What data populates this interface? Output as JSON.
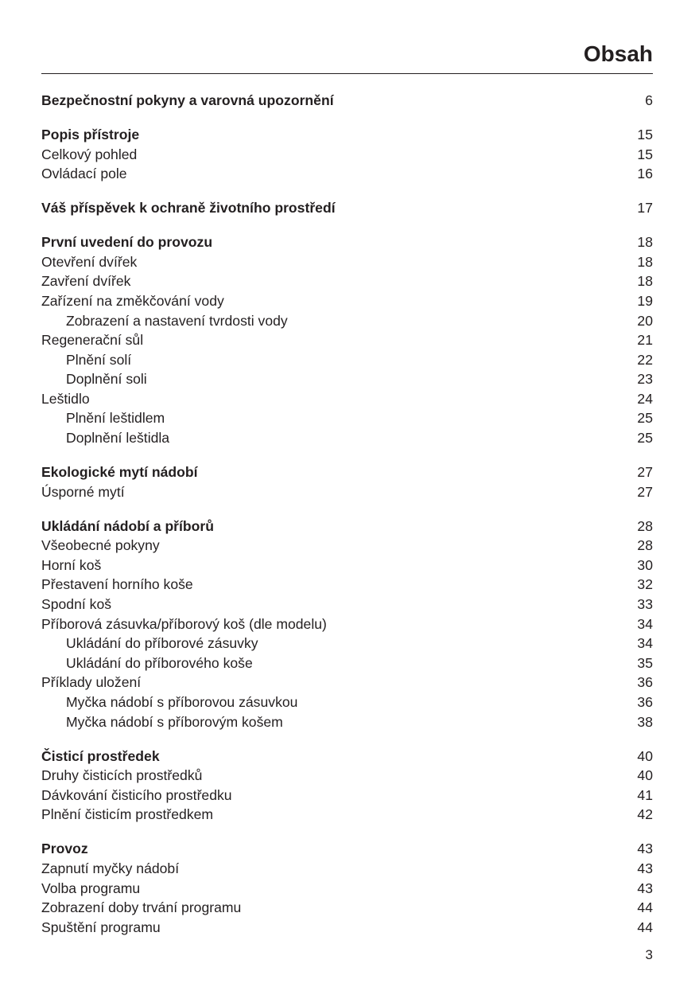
{
  "title": "Obsah",
  "page_number": "3",
  "groups": [
    {
      "entries": [
        {
          "text": "Bezpečnostní pokyny a varovná upozornění",
          "page": "6",
          "bold": true
        }
      ]
    },
    {
      "entries": [
        {
          "text": "Popis přístroje",
          "page": "15",
          "bold": true
        },
        {
          "text": "Celkový pohled",
          "page": "15"
        },
        {
          "text": "Ovládací pole",
          "page": "16"
        }
      ]
    },
    {
      "entries": [
        {
          "text": "Váš příspěvek k ochraně životního prostředí",
          "page": "17",
          "bold": true
        }
      ]
    },
    {
      "entries": [
        {
          "text": "První uvedení do provozu",
          "page": "18",
          "bold": true
        },
        {
          "text": "Otevření dvířek",
          "page": "18"
        },
        {
          "text": "Zavření dvířek",
          "page": "18"
        },
        {
          "text": "Zařízení na změkčování vody",
          "page": "19"
        },
        {
          "text": "Zobrazení a nastavení tvrdosti vody",
          "page": "20",
          "indent": true
        },
        {
          "text": "Regenerační sůl",
          "page": "21"
        },
        {
          "text": "Plnění solí",
          "page": "22",
          "indent": true
        },
        {
          "text": "Doplnění soli",
          "page": "23",
          "indent": true
        },
        {
          "text": "Leštidlo",
          "page": "24"
        },
        {
          "text": "Plnění leštidlem",
          "page": "25",
          "indent": true
        },
        {
          "text": "Doplnění leštidla",
          "page": "25",
          "indent": true
        }
      ]
    },
    {
      "entries": [
        {
          "text": "Ekologické mytí nádobí",
          "page": "27",
          "bold": true
        },
        {
          "text": "Úsporné mytí",
          "page": "27"
        }
      ]
    },
    {
      "entries": [
        {
          "text": "Ukládání nádobí a příborů",
          "page": "28",
          "bold": true
        },
        {
          "text": "Všeobecné pokyny",
          "page": "28"
        },
        {
          "text": "Horní koš",
          "page": "30"
        },
        {
          "text": "Přestavení horního koše",
          "page": "32"
        },
        {
          "text": "Spodní koš",
          "page": "33"
        },
        {
          "text": "Příborová zásuvka/příborový koš (dle modelu)",
          "page": "34"
        },
        {
          "text": "Ukládání do příborové zásuvky",
          "page": "34",
          "indent": true
        },
        {
          "text": "Ukládání do příborového koše",
          "page": "35",
          "indent": true
        },
        {
          "text": "Příklady uložení",
          "page": "36"
        },
        {
          "text": "Myčka nádobí s příborovou zásuvkou",
          "page": "36",
          "indent": true
        },
        {
          "text": "Myčka nádobí s příborovým košem",
          "page": "38",
          "indent": true
        }
      ]
    },
    {
      "entries": [
        {
          "text": "Čisticí prostředek",
          "page": "40",
          "bold": true
        },
        {
          "text": "Druhy čisticích prostředků",
          "page": "40"
        },
        {
          "text": "Dávkování čisticího prostředku",
          "page": "41"
        },
        {
          "text": "Plnění čisticím prostředkem",
          "page": "42"
        }
      ]
    },
    {
      "entries": [
        {
          "text": "Provoz",
          "page": "43",
          "bold": true
        },
        {
          "text": "Zapnutí myčky nádobí",
          "page": "43"
        },
        {
          "text": "Volba programu",
          "page": "43"
        },
        {
          "text": "Zobrazení doby trvání programu",
          "page": "44"
        },
        {
          "text": "Spuštění programu",
          "page": "44"
        }
      ]
    }
  ]
}
